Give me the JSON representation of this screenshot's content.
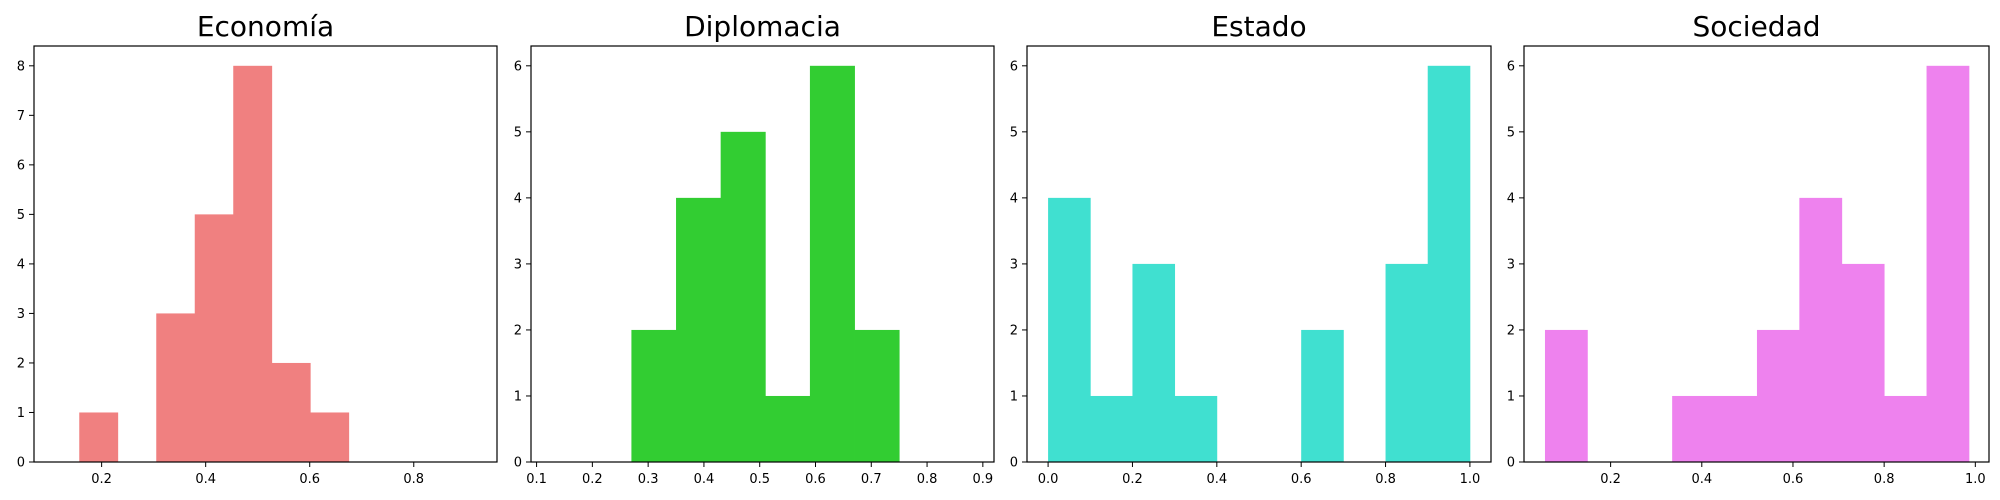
{
  "chart_data": [
    {
      "type": "bar",
      "title": "Economía",
      "color": "#f08080",
      "xlim": [
        0.07,
        0.96
      ],
      "ylim": [
        0,
        8.4
      ],
      "xticks": [
        0.2,
        0.4,
        0.6,
        0.8
      ],
      "yticks": [
        0,
        1,
        2,
        3,
        4,
        5,
        6,
        7,
        8
      ],
      "bins": [
        {
          "x0": 0.157,
          "x1": 0.231,
          "count": 1
        },
        {
          "x0": 0.231,
          "x1": 0.305,
          "count": 0
        },
        {
          "x0": 0.305,
          "x1": 0.379,
          "count": 3
        },
        {
          "x0": 0.379,
          "x1": 0.453,
          "count": 5
        },
        {
          "x0": 0.453,
          "x1": 0.527,
          "count": 8
        },
        {
          "x0": 0.527,
          "x1": 0.601,
          "count": 2
        },
        {
          "x0": 0.601,
          "x1": 0.675,
          "count": 1
        }
      ]
    },
    {
      "type": "bar",
      "title": "Diplomacia",
      "color": "#32cd32",
      "xlim": [
        0.09,
        0.92
      ],
      "ylim": [
        0,
        6.3
      ],
      "xticks": [
        0.1,
        0.2,
        0.3,
        0.4,
        0.5,
        0.6,
        0.7,
        0.8,
        0.9
      ],
      "yticks": [
        0,
        1,
        2,
        3,
        4,
        5,
        6
      ],
      "bins": [
        {
          "x0": 0.27,
          "x1": 0.35,
          "count": 2
        },
        {
          "x0": 0.35,
          "x1": 0.43,
          "count": 4
        },
        {
          "x0": 0.43,
          "x1": 0.51,
          "count": 5
        },
        {
          "x0": 0.51,
          "x1": 0.59,
          "count": 1
        },
        {
          "x0": 0.59,
          "x1": 0.67,
          "count": 6
        },
        {
          "x0": 0.67,
          "x1": 0.75,
          "count": 2
        }
      ]
    },
    {
      "type": "bar",
      "title": "Estado",
      "color": "#40e0d0",
      "xlim": [
        -0.05,
        1.05
      ],
      "ylim": [
        0,
        6.3
      ],
      "xticks": [
        0.0,
        0.2,
        0.4,
        0.6,
        0.8,
        1.0
      ],
      "yticks": [
        0,
        1,
        2,
        3,
        4,
        5,
        6
      ],
      "bins": [
        {
          "x0": 0.0,
          "x1": 0.1,
          "count": 4
        },
        {
          "x0": 0.1,
          "x1": 0.2,
          "count": 1
        },
        {
          "x0": 0.2,
          "x1": 0.3,
          "count": 3
        },
        {
          "x0": 0.3,
          "x1": 0.4,
          "count": 1
        },
        {
          "x0": 0.4,
          "x1": 0.5,
          "count": 0
        },
        {
          "x0": 0.5,
          "x1": 0.6,
          "count": 0
        },
        {
          "x0": 0.6,
          "x1": 0.7,
          "count": 2
        },
        {
          "x0": 0.7,
          "x1": 0.8,
          "count": 0
        },
        {
          "x0": 0.8,
          "x1": 0.9,
          "count": 3
        },
        {
          "x0": 0.9,
          "x1": 1.0,
          "count": 6
        }
      ]
    },
    {
      "type": "bar",
      "title": "Sociedad",
      "color": "#ee82ee",
      "xlim": [
        0.01,
        1.03
      ],
      "ylim": [
        0,
        6.3
      ],
      "xticks": [
        0.2,
        0.4,
        0.6,
        0.8,
        1.0
      ],
      "yticks": [
        0,
        1,
        2,
        3,
        4,
        5,
        6
      ],
      "bins": [
        {
          "x0": 0.056,
          "x1": 0.149,
          "count": 2
        },
        {
          "x0": 0.149,
          "x1": 0.242,
          "count": 0
        },
        {
          "x0": 0.242,
          "x1": 0.335,
          "count": 0
        },
        {
          "x0": 0.335,
          "x1": 0.428,
          "count": 1
        },
        {
          "x0": 0.428,
          "x1": 0.521,
          "count": 1
        },
        {
          "x0": 0.521,
          "x1": 0.614,
          "count": 2
        },
        {
          "x0": 0.614,
          "x1": 0.707,
          "count": 4
        },
        {
          "x0": 0.707,
          "x1": 0.8,
          "count": 3
        },
        {
          "x0": 0.8,
          "x1": 0.893,
          "count": 1
        },
        {
          "x0": 0.893,
          "x1": 0.986,
          "count": 6
        }
      ]
    }
  ]
}
